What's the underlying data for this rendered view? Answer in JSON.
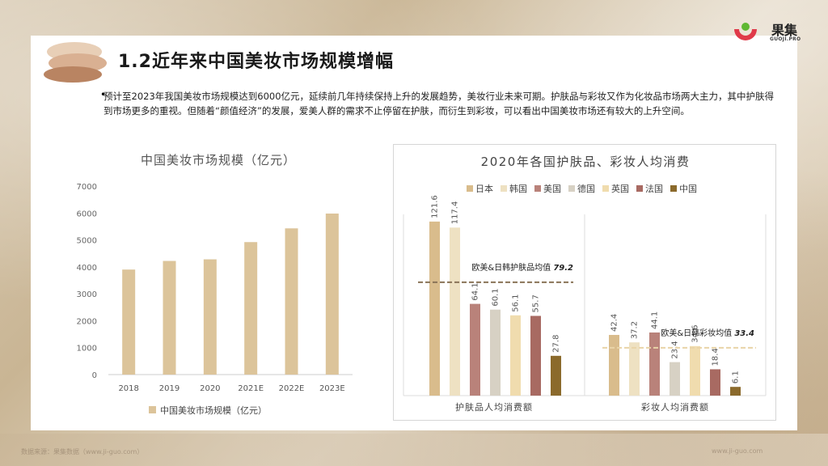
{
  "header": {
    "title": "1.2近年来中国美妆市场规模增幅",
    "logo_cn": "果集",
    "logo_en": "GUOJI.PRO"
  },
  "body": {
    "bullet": "预计至2023年我国美妆市场规模达到6000亿元，延续前几年持续保持上升的发展趋势，美妆行业未来可期。护肤品与彩妆又作为化妆品市场两大主力，其中护肤得到市场更多的重视。但随着“颜值经济”的发展，爱美人群的需求不止停留在护肤，而衍生到彩妆，可以看出中国美妆市场还有较大的上升空间。"
  },
  "footer": {
    "source": "数据来源：果集数据（www.ji-guo.com）",
    "site": "www.ji-guo.com"
  },
  "colors": {
    "bar_left": "#dcc49a",
    "japan": "#d9bc8c",
    "korea": "#eee1c2",
    "usa": "#b9827a",
    "germany": "#d7d1c4",
    "uk": "#f0dcae",
    "france": "#a86a62",
    "china": "#8b6a2c"
  },
  "chart_data": [
    {
      "type": "bar",
      "title": "中国美妆市场规模（亿元）",
      "categories": [
        "2018",
        "2019",
        "2020",
        "2021E",
        "2022E",
        "2023E"
      ],
      "series": [
        {
          "name": "中国美妆市场规模（亿元）",
          "values": [
            3900,
            4220,
            4280,
            4920,
            5430,
            5980
          ]
        }
      ],
      "ylim": [
        0,
        7000
      ],
      "yticks": [
        "0",
        "1000",
        "2000",
        "3000",
        "4000",
        "5000",
        "6000",
        "7000"
      ],
      "legend": "bottom",
      "grid": false
    },
    {
      "type": "bar",
      "title": "2020年各国护肤品、彩妆人均消费",
      "legend_items": [
        "日本",
        "韩国",
        "美国",
        "德国",
        "英国",
        "法国",
        "中国"
      ],
      "legend": "top",
      "groups": [
        {
          "label": "护肤品人均消费额",
          "values": [
            121.6,
            117.4,
            64.1,
            60.1,
            56.1,
            55.7,
            27.8
          ],
          "value_labels": [
            "121.6",
            "117.4",
            "64.1",
            "60.1",
            "56.1",
            "55.7",
            "27.8"
          ],
          "avg_label": "欧美&日韩护肤品均值",
          "avg_value": 79.2,
          "avg_value_label": "79.2"
        },
        {
          "label": "彩妆人均消费额",
          "values": [
            42.4,
            37.2,
            44.1,
            23.4,
            34.6,
            18.4,
            6.1
          ],
          "value_labels": [
            "42.4",
            "37.2",
            "44.1",
            "23.4",
            "34.6",
            "18.4",
            "6.1"
          ],
          "avg_label": "欧美&日韩彩妆均值",
          "avg_value": 33.4,
          "avg_value_label": "33.4"
        }
      ]
    }
  ]
}
